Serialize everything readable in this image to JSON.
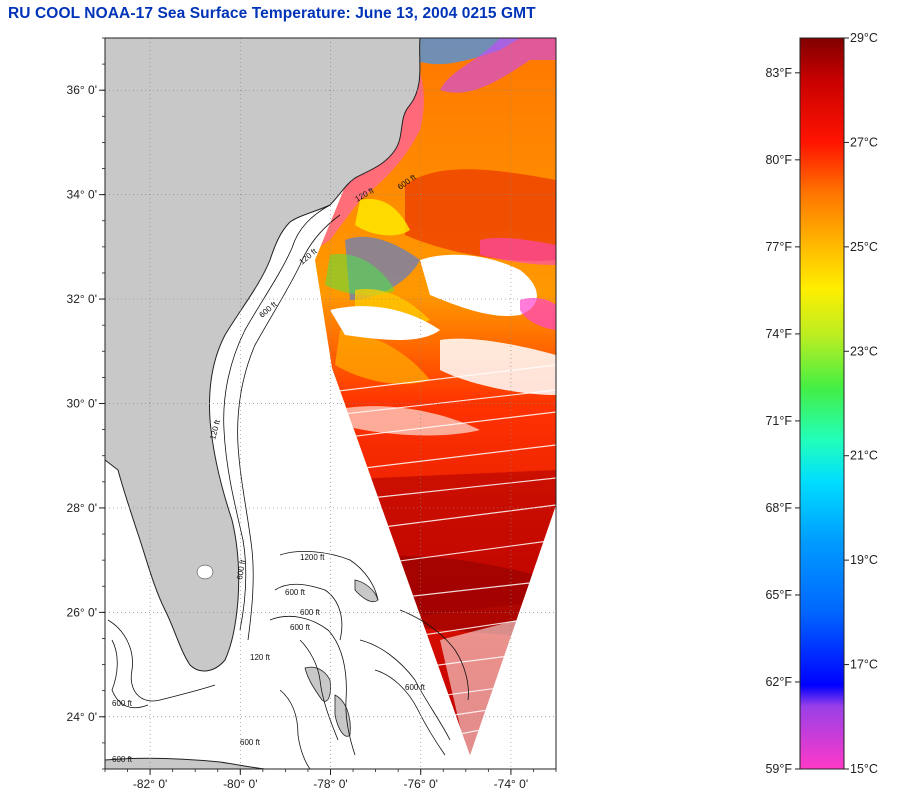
{
  "title": "RU COOL  NOAA-17  Sea Surface Temperature:  June 13, 2004 0215 GMT",
  "map": {
    "lon_range": [
      -83.0,
      -73.0
    ],
    "lat_range": [
      23.0,
      37.0
    ],
    "lon_ticks": [
      {
        "value": -82,
        "label": "-82° 0'"
      },
      {
        "value": -80,
        "label": "-80° 0'"
      },
      {
        "value": -78,
        "label": "-78° 0'"
      },
      {
        "value": -76,
        "label": "-76° 0'"
      },
      {
        "value": -74,
        "label": "-74° 0'"
      }
    ],
    "lat_ticks": [
      {
        "value": 36,
        "label": "36° 0'"
      },
      {
        "value": 34,
        "label": "34° 0'"
      },
      {
        "value": 32,
        "label": "32° 0'"
      },
      {
        "value": 30,
        "label": "30° 0'"
      },
      {
        "value": 28,
        "label": "28° 0'"
      },
      {
        "value": 26,
        "label": "26° 0'"
      },
      {
        "value": 24,
        "label": "24° 0'"
      }
    ],
    "land_color": "#c8c8c8",
    "contour_labels": [
      "120 ft",
      "600 ft",
      "120 ft",
      "600 ft",
      "120 ft",
      "600 ft",
      "1200 ft",
      "600 ft",
      "600 ft",
      "120 ft",
      "600 ft",
      "600 ft",
      "600 ft",
      "600 ft",
      "600 ft"
    ]
  },
  "colorbar": {
    "fahrenheit_labels": [
      "83°F",
      "80°F",
      "77°F",
      "74°F",
      "71°F",
      "68°F",
      "65°F",
      "62°F",
      "59°F"
    ],
    "celsius_labels": [
      "29°C",
      "27°C",
      "25°C",
      "23°C",
      "21°C",
      "19°C",
      "17°C",
      "15°C"
    ],
    "range_celsius": [
      15,
      29
    ],
    "stops": [
      {
        "c": 15.0,
        "color": "#ff39c8"
      },
      {
        "c": 16.2,
        "color": "#9940e8"
      },
      {
        "c": 16.6,
        "color": "#0000ff"
      },
      {
        "c": 18.0,
        "color": "#0066ff"
      },
      {
        "c": 19.3,
        "color": "#0099ff"
      },
      {
        "c": 20.5,
        "color": "#00ddff"
      },
      {
        "c": 21.3,
        "color": "#22ffbb"
      },
      {
        "c": 22.3,
        "color": "#44ee44"
      },
      {
        "c": 23.3,
        "color": "#bbee22"
      },
      {
        "c": 24.2,
        "color": "#ffee00"
      },
      {
        "c": 25.0,
        "color": "#ffbb00"
      },
      {
        "c": 26.0,
        "color": "#ff7700"
      },
      {
        "c": 27.0,
        "color": "#ff1400"
      },
      {
        "c": 28.2,
        "color": "#c80000"
      },
      {
        "c": 29.0,
        "color": "#800000"
      }
    ]
  }
}
